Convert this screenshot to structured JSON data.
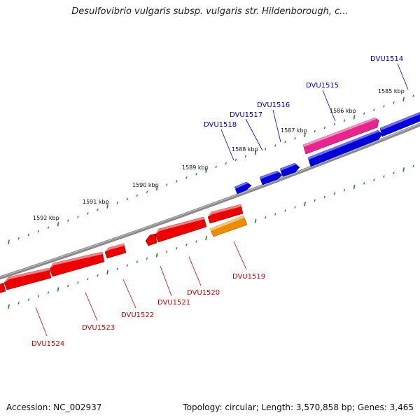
{
  "header": {
    "title": "Desulfovibrio vulgaris subsp. vulgaris str. Hildenborough, c..."
  },
  "footer": {
    "accession": "Accession: NC_002937",
    "summary": "Topology: circular; Length: 3,570,858 bp; Genes: 3,465"
  },
  "colors": {
    "forward_gene": "#0000dd",
    "forward_gene_highlight": "#e8248f",
    "reverse_gene": "#ee0000",
    "reverse_gene_highlight": "#f08c00",
    "backbone": "#777777",
    "scale_ticks": "#1a8a1a",
    "forward_label": "#0000cc",
    "reverse_label": "#cc0000"
  },
  "scale": {
    "ticks": [
      "1585 kbp",
      "1586 kbp",
      "1587 kbp",
      "1588 kbp",
      "1589 kbp",
      "1590 kbp",
      "1591 kbp",
      "1592 kbp"
    ]
  },
  "genes": {
    "forward": [
      {
        "name": "DVU1514",
        "icon": "arrow-right"
      },
      {
        "name": "DVU1515",
        "icon": "arrow-right",
        "highlight": true
      },
      {
        "name": "DVU1516",
        "icon": "arrow-right"
      },
      {
        "name": "DVU1517",
        "icon": "arrow-right"
      },
      {
        "name": "DVU1518",
        "icon": "arrow-right"
      }
    ],
    "reverse": [
      {
        "name": "DVU1519",
        "icon": "arrow-left",
        "highlight": true
      },
      {
        "name": "DVU1520",
        "icon": "arrow-left"
      },
      {
        "name": "DVU1521",
        "icon": "arrow-left"
      },
      {
        "name": "DVU1522",
        "icon": "arrow-left"
      },
      {
        "name": "DVU1523",
        "icon": "arrow-left"
      },
      {
        "name": "DVU1524",
        "icon": "arrow-left"
      }
    ]
  }
}
